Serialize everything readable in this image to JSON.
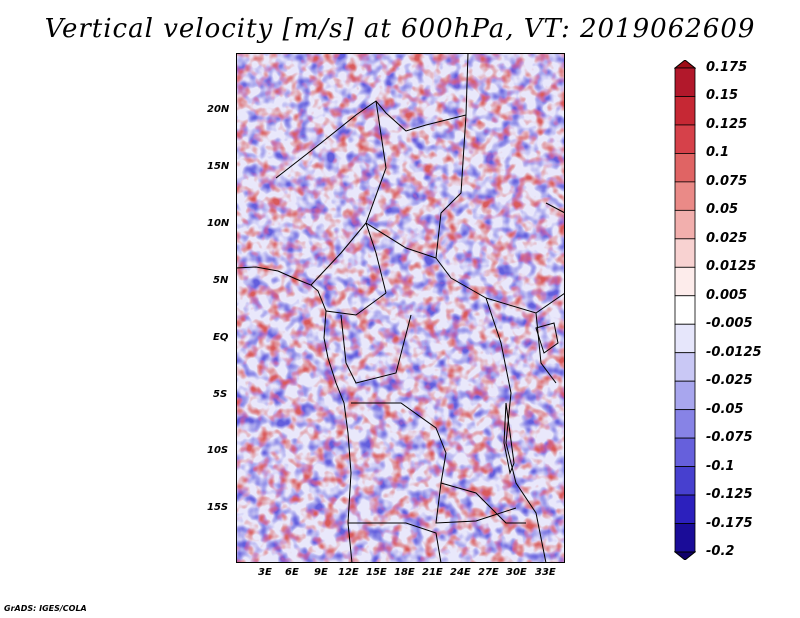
{
  "title": "Vertical velocity [m/s] at 600hPa, VT: 2019062609",
  "lat_labels": [
    "20N",
    "15N",
    "10N",
    "5N",
    "EQ",
    "5S",
    "10S",
    "15S"
  ],
  "lon_labels": [
    "3E",
    "6E",
    "9E",
    "12E",
    "15E",
    "18E",
    "21E",
    "24E",
    "27E",
    "30E",
    "33E"
  ],
  "colorbar": {
    "labels": [
      "0.175",
      "0.15",
      "0.125",
      "0.1",
      "0.075",
      "0.05",
      "0.025",
      "0.0125",
      "0.005",
      "-0.005",
      "-0.0125",
      "-0.025",
      "-0.05",
      "-0.075",
      "-0.1",
      "-0.125",
      "-0.175",
      "-0.2"
    ],
    "colors": [
      "#9e0d17",
      "#b2182b",
      "#c62834",
      "#d6414a",
      "#e06464",
      "#ea8a87",
      "#f2afad",
      "#f8d2d1",
      "#fdeceb",
      "#ffffff",
      "#e6e6fb",
      "#c9c8f5",
      "#a8a6ee",
      "#8783e6",
      "#6660dc",
      "#4740cf",
      "#2c20bd",
      "#1a0c98",
      "#10006a"
    ]
  },
  "credit": "GrADS: IGES/COLA"
}
